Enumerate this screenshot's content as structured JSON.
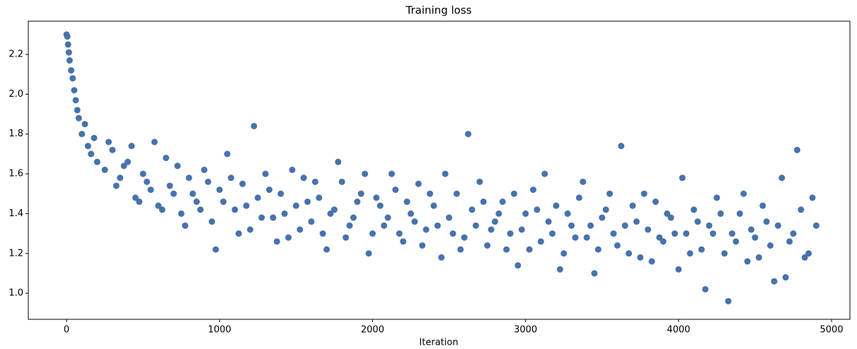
{
  "chart_data": {
    "type": "scatter",
    "title": "Training loss",
    "x_label": "Iteration",
    "color": "#4872ab",
    "xlim": [
      -250,
      5120
    ],
    "ylim": [
      0.869,
      2.367
    ],
    "xticks": [
      0,
      1000,
      2000,
      3000,
      4000,
      5000
    ],
    "yticks": [
      {
        "value": 1.0,
        "label": "1.0"
      },
      1.2,
      1.4,
      1.6,
      1.8,
      {
        "value": 2.0,
        "label": "2.0"
      },
      2.2
    ],
    "grid": false,
    "x": [
      0,
      5,
      10,
      15,
      20,
      30,
      40,
      50,
      60,
      70,
      80,
      100,
      120,
      140,
      160,
      180,
      200,
      250,
      300,
      350,
      400,
      450,
      500,
      550,
      600,
      650,
      700,
      750,
      800,
      850,
      900,
      950,
      1000,
      1050,
      1100,
      1150,
      1200,
      1250,
      1300,
      1350,
      1400,
      1450,
      1500,
      1550,
      1600,
      1650,
      1700,
      1750,
      1800,
      1850,
      1900,
      1950,
      2000,
      2050,
      2100,
      2150,
      2200,
      2250,
      2300,
      2350,
      2400,
      2450,
      2500,
      2550,
      2600,
      2650,
      2700,
      2750,
      2800,
      2850,
      2900,
      2950,
      3000,
      3050,
      3100,
      3150,
      3200,
      3250,
      3300,
      3350,
      3400,
      3450,
      3500,
      3550,
      3600,
      3650,
      3700,
      3750,
      3800,
      3850,
      3900,
      3950,
      4000,
      4050,
      4100,
      4150,
      4200,
      4250,
      4300,
      4350,
      4400,
      4450,
      4500,
      4550,
      4600,
      4650,
      4700,
      4750,
      4800,
      4850,
      4900,
      275,
      325,
      375,
      425,
      475,
      525,
      575,
      625,
      675,
      725,
      775,
      825,
      875,
      925,
      975,
      1025,
      1075,
      1125,
      1175,
      1225,
      1275,
      1325,
      1375,
      1425,
      1475,
      1525,
      1575,
      1625,
      1675,
      1725,
      1775,
      1825,
      1875,
      1925,
      1975,
      2025,
      2075,
      2125,
      2175,
      2225,
      2275,
      2325,
      2375,
      2425,
      2475,
      2525,
      2575,
      2625,
      2675,
      2725,
      2775,
      2825,
      2875,
      2925,
      2975,
      3025,
      3075,
      3125,
      3175,
      3225,
      3275,
      3325,
      3375,
      3425,
      3475,
      3525,
      3575,
      3625,
      3675,
      3725,
      3775,
      3825,
      3875,
      3925,
      3975,
      4025,
      4075,
      4125,
      4175,
      4225,
      4275,
      4325,
      4375,
      4425,
      4475,
      4525,
      4575,
      4625,
      4675,
      4725,
      4775,
      4825,
      4875
    ],
    "values": [
      2.3,
      2.29,
      2.25,
      2.21,
      2.17,
      2.12,
      2.08,
      2.02,
      1.97,
      1.92,
      1.88,
      1.8,
      1.85,
      1.74,
      1.7,
      1.78,
      1.66,
      1.62,
      1.72,
      1.58,
      1.66,
      1.48,
      1.6,
      1.52,
      1.44,
      1.68,
      1.5,
      1.4,
      1.58,
      1.46,
      1.62,
      1.36,
      1.52,
      1.7,
      1.42,
      1.55,
      1.32,
      1.48,
      1.6,
      1.38,
      1.5,
      1.28,
      1.44,
      1.58,
      1.36,
      1.48,
      1.22,
      1.42,
      1.56,
      1.34,
      1.46,
      1.6,
      1.3,
      1.44,
      1.38,
      1.52,
      1.26,
      1.4,
      1.55,
      1.32,
      1.44,
      1.18,
      1.38,
      1.5,
      1.28,
      1.42,
      1.56,
      1.24,
      1.36,
      1.46,
      1.3,
      1.14,
      1.4,
      1.52,
      1.26,
      1.36,
      1.44,
      1.2,
      1.34,
      1.48,
      1.28,
      1.1,
      1.38,
      1.5,
      1.24,
      1.34,
      1.44,
      1.18,
      1.32,
      1.46,
      1.26,
      1.38,
      1.12,
      1.3,
      1.42,
      1.22,
      1.34,
      1.48,
      1.2,
      1.3,
      1.4,
      1.16,
      1.28,
      1.44,
      1.24,
      1.34,
      1.08,
      1.3,
      1.42,
      1.2,
      1.34,
      1.76,
      1.54,
      1.64,
      1.74,
      1.46,
      1.56,
      1.76,
      1.42,
      1.54,
      1.64,
      1.34,
      1.5,
      1.42,
      1.56,
      1.22,
      1.46,
      1.58,
      1.3,
      1.44,
      1.84,
      1.38,
      1.52,
      1.26,
      1.4,
      1.62,
      1.32,
      1.46,
      1.56,
      1.3,
      1.4,
      1.66,
      1.28,
      1.38,
      1.5,
      1.2,
      1.48,
      1.34,
      1.6,
      1.3,
      1.46,
      1.36,
      1.24,
      1.5,
      1.34,
      1.6,
      1.3,
      1.22,
      1.8,
      1.34,
      1.46,
      1.32,
      1.4,
      1.22,
      1.5,
      1.32,
      1.22,
      1.42,
      1.6,
      1.3,
      1.12,
      1.4,
      1.28,
      1.56,
      1.34,
      1.22,
      1.42,
      1.3,
      1.74,
      1.2,
      1.36,
      1.5,
      1.16,
      1.28,
      1.4,
      1.3,
      1.58,
      1.2,
      1.36,
      1.02,
      1.3,
      1.4,
      0.96,
      1.26,
      1.5,
      1.32,
      1.18,
      1.36,
      1.06,
      1.58,
      1.26,
      1.72,
      1.18,
      1.48
    ]
  }
}
